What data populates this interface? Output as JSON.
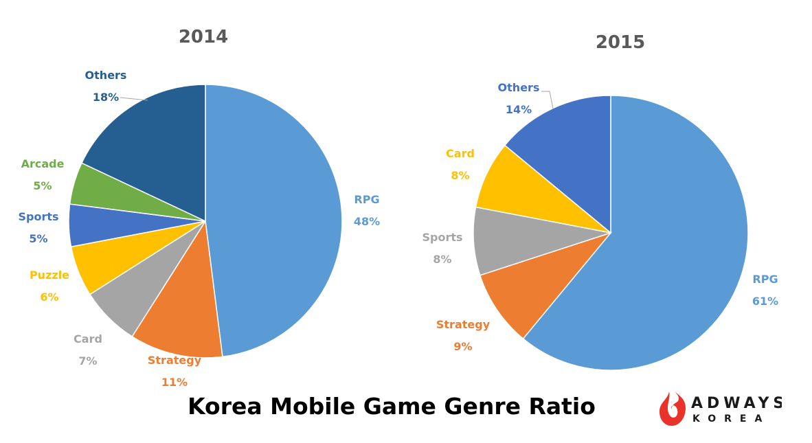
{
  "chart_data": [
    {
      "type": "pie",
      "title": "2014",
      "slices": [
        {
          "label": "RPG",
          "value": 48,
          "value_label": "48%",
          "color": "#5b9bd5",
          "label_color": "#5b9bd5"
        },
        {
          "label": "Strategy",
          "value": 11,
          "value_label": "11%",
          "color": "#ed7d31",
          "label_color": "#ed7d31"
        },
        {
          "label": "Card",
          "value": 7,
          "value_label": "7%",
          "color": "#a5a5a5",
          "label_color": "#a5a5a5"
        },
        {
          "label": "Puzzle",
          "value": 6,
          "value_label": "6%",
          "color": "#ffc000",
          "label_color": "#ffc000"
        },
        {
          "label": "Sports",
          "value": 5,
          "value_label": "5%",
          "color": "#4472c4",
          "label_color": "#4472c4"
        },
        {
          "label": "Arcade",
          "value": 5,
          "value_label": "5%",
          "color": "#70ad47",
          "label_color": "#70ad47"
        },
        {
          "label": "Others",
          "value": 18,
          "value_label": "18%",
          "color": "#255e91",
          "label_color": "#255e91"
        }
      ]
    },
    {
      "type": "pie",
      "title": "2015",
      "slices": [
        {
          "label": "RPG",
          "value": 61,
          "value_label": "61%",
          "color": "#5b9bd5",
          "label_color": "#5b9bd5"
        },
        {
          "label": "Strategy",
          "value": 9,
          "value_label": "9%",
          "color": "#ed7d31",
          "label_color": "#ed7d31"
        },
        {
          "label": "Sports",
          "value": 8,
          "value_label": "8%",
          "color": "#a5a5a5",
          "label_color": "#a5a5a5"
        },
        {
          "label": "Card",
          "value": 8,
          "value_label": "8%",
          "color": "#ffc000",
          "label_color": "#ffc000"
        },
        {
          "label": "Others",
          "value": 14,
          "value_label": "14%",
          "color": "#4472c4",
          "label_color": "#4472c4"
        }
      ]
    }
  ],
  "main_title": "Korea Mobile Game Genre Ratio",
  "logo": {
    "word": "ADWAYS",
    "sub": "KOREA",
    "mark_color": "#e8322a"
  }
}
